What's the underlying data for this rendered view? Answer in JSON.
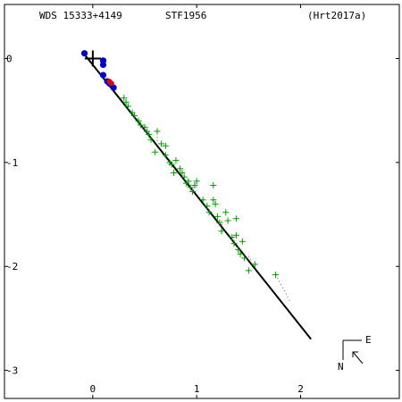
{
  "header": {
    "left": "WDS 15333+4149",
    "center": "STF1956",
    "right": "(Hrt2017a)"
  },
  "compass": {
    "east_label": "E",
    "north_label": "N"
  },
  "colors": {
    "frame": "#000000",
    "speckle": "#009900",
    "visual": "#0000cc",
    "recent": "#dd0000",
    "orbit": "#000000",
    "dotted": "#555555"
  },
  "chart_data": {
    "type": "scatter",
    "title": "",
    "xlabel": "",
    "ylabel": "",
    "xlim": [
      -0.85,
      2.95
    ],
    "ylim": [
      0.52,
      -3.27
    ],
    "xticks": [
      0,
      1,
      2
    ],
    "yticks": [
      0,
      -1,
      -2,
      -3
    ],
    "xtick_labels": [
      "0",
      "1",
      "2"
    ],
    "ytick_labels": [
      "0",
      "1",
      "2",
      "3"
    ],
    "grid": false,
    "primary": [
      0,
      0
    ],
    "orbit_line": [
      [
        -0.08,
        0.04
      ],
      [
        2.1,
        -2.7
      ]
    ],
    "dotted_residuals": [
      [
        [
          0.62,
          -0.72
        ],
        [
          0.62,
          -0.82
        ]
      ],
      [
        [
          0.98,
          -1.2
        ],
        [
          1.0,
          -1.24
        ]
      ],
      [
        [
          1.24,
          -1.56
        ],
        [
          1.24,
          -1.62
        ]
      ],
      [
        [
          1.5,
          -1.9
        ],
        [
          1.52,
          -1.94
        ]
      ],
      [
        [
          1.76,
          -2.08
        ],
        [
          1.9,
          -2.34
        ]
      ]
    ],
    "series": [
      {
        "marker": "plus",
        "points": [
          [
            0.3,
            -0.38
          ],
          [
            0.32,
            -0.42
          ],
          [
            0.34,
            -0.46
          ],
          [
            0.38,
            -0.52
          ],
          [
            0.4,
            -0.55
          ],
          [
            0.44,
            -0.6
          ],
          [
            0.46,
            -0.64
          ],
          [
            0.5,
            -0.66
          ],
          [
            0.52,
            -0.7
          ],
          [
            0.54,
            -0.73
          ],
          [
            0.56,
            -0.78
          ],
          [
            0.62,
            -0.7
          ],
          [
            0.6,
            -0.9
          ],
          [
            0.66,
            -0.82
          ],
          [
            0.7,
            -0.84
          ],
          [
            0.7,
            -0.93
          ],
          [
            0.74,
            -1.0
          ],
          [
            0.76,
            -1.02
          ],
          [
            0.78,
            -1.1
          ],
          [
            0.8,
            -0.98
          ],
          [
            0.84,
            -1.06
          ],
          [
            0.86,
            -1.1
          ],
          [
            0.88,
            -1.14
          ],
          [
            0.9,
            -1.2
          ],
          [
            0.92,
            -1.18
          ],
          [
            0.94,
            -1.24
          ],
          [
            0.96,
            -1.28
          ],
          [
            0.98,
            -1.22
          ],
          [
            1.0,
            -1.18
          ],
          [
            1.06,
            -1.36
          ],
          [
            1.1,
            -1.42
          ],
          [
            1.12,
            -1.48
          ],
          [
            1.16,
            -1.36
          ],
          [
            1.16,
            -1.22
          ],
          [
            1.18,
            -1.4
          ],
          [
            1.2,
            -1.52
          ],
          [
            1.22,
            -1.58
          ],
          [
            1.24,
            -1.66
          ],
          [
            1.28,
            -1.48
          ],
          [
            1.3,
            -1.56
          ],
          [
            1.34,
            -1.72
          ],
          [
            1.36,
            -1.78
          ],
          [
            1.38,
            -1.7
          ],
          [
            1.4,
            -1.84
          ],
          [
            1.42,
            -1.88
          ],
          [
            1.44,
            -1.76
          ],
          [
            1.46,
            -1.92
          ],
          [
            1.5,
            -2.04
          ],
          [
            1.38,
            -1.54
          ],
          [
            1.56,
            -1.98
          ],
          [
            1.76,
            -2.08
          ]
        ]
      },
      {
        "marker": "dot",
        "points": [
          [
            -0.08,
            0.05
          ],
          [
            0.1,
            -0.02
          ],
          [
            0.1,
            -0.06
          ],
          [
            0.1,
            -0.16
          ],
          [
            0.14,
            -0.22
          ],
          [
            0.16,
            -0.24
          ],
          [
            0.2,
            -0.28
          ]
        ]
      },
      {
        "marker": "dot-red",
        "points": [
          [
            0.16,
            -0.22
          ],
          [
            0.18,
            -0.24
          ]
        ]
      }
    ]
  }
}
